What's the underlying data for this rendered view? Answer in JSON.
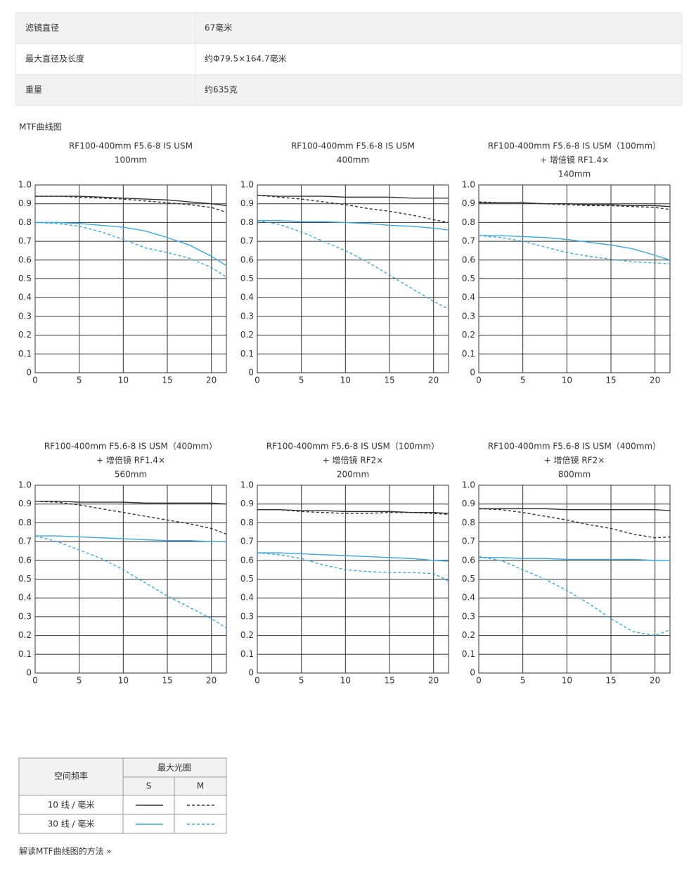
{
  "specs": {
    "rows": [
      [
        "滤镜直径",
        "67毫米"
      ],
      [
        "最大直径及长度",
        "约Φ79.5×164.7毫米"
      ],
      [
        "重量",
        "约635克"
      ]
    ]
  },
  "section_title": "MTF曲线图",
  "chart_data": [
    {
      "type": "line",
      "title": [
        "RF100-400mm F5.6-8 IS USM",
        "100mm"
      ],
      "x": [
        0,
        2.5,
        5,
        7.5,
        10,
        12.5,
        15,
        17.5,
        20,
        21.7
      ],
      "xlim": [
        0,
        21.7
      ],
      "xticks": [
        0,
        5,
        10,
        15,
        20
      ],
      "ylim": [
        0,
        1
      ],
      "yticks": [
        0,
        0.1,
        0.2,
        0.3,
        0.4,
        0.5,
        0.6,
        0.7,
        0.8,
        0.9,
        {
          "value": 1,
          "label": "1.0"
        }
      ],
      "grid": true,
      "series": [
        {
          "color": "#333333",
          "dashed": false,
          "values": [
            0.94,
            0.94,
            0.94,
            0.935,
            0.93,
            0.925,
            0.92,
            0.91,
            0.9,
            0.89
          ]
        },
        {
          "color": "#333333",
          "dashed": true,
          "values": [
            0.94,
            0.94,
            0.935,
            0.93,
            0.925,
            0.915,
            0.905,
            0.895,
            0.88,
            0.855
          ]
        },
        {
          "color": "#3aa8e0",
          "dashed": false,
          "values": [
            0.8,
            0.8,
            0.795,
            0.785,
            0.775,
            0.755,
            0.72,
            0.68,
            0.62,
            0.57
          ]
        },
        {
          "color": "#3aa8e0",
          "dashed": true,
          "values": [
            0.8,
            0.795,
            0.78,
            0.75,
            0.71,
            0.665,
            0.64,
            0.61,
            0.56,
            0.51
          ]
        }
      ]
    },
    {
      "type": "line",
      "title": [
        "RF100-400mm F5.6-8 IS USM",
        "400mm"
      ],
      "x": [
        0,
        2.5,
        5,
        7.5,
        10,
        12.5,
        15,
        17.5,
        20,
        21.7
      ],
      "xlim": [
        0,
        21.7
      ],
      "xticks": [
        0,
        5,
        10,
        15,
        20
      ],
      "ylim": [
        0,
        1
      ],
      "yticks": [
        0,
        0.1,
        0.2,
        0.3,
        0.4,
        0.5,
        0.6,
        0.7,
        0.8,
        0.9,
        {
          "value": 1,
          "label": "1.0"
        }
      ],
      "grid": true,
      "series": [
        {
          "color": "#333333",
          "dashed": false,
          "values": [
            0.945,
            0.94,
            0.94,
            0.94,
            0.935,
            0.935,
            0.935,
            0.93,
            0.93,
            0.93
          ]
        },
        {
          "color": "#333333",
          "dashed": true,
          "values": [
            0.945,
            0.935,
            0.925,
            0.91,
            0.895,
            0.875,
            0.86,
            0.84,
            0.815,
            0.8
          ]
        },
        {
          "color": "#3aa8e0",
          "dashed": false,
          "values": [
            0.81,
            0.81,
            0.805,
            0.805,
            0.8,
            0.795,
            0.785,
            0.78,
            0.77,
            0.76
          ]
        },
        {
          "color": "#3aa8e0",
          "dashed": true,
          "values": [
            0.81,
            0.79,
            0.75,
            0.7,
            0.65,
            0.59,
            0.52,
            0.45,
            0.38,
            0.34
          ]
        }
      ]
    },
    {
      "type": "line",
      "title": [
        "RF100-400mm F5.6-8 IS USM（100mm）",
        "+ 增倍镜 RF1.4×",
        "140mm"
      ],
      "x": [
        0,
        2.5,
        5,
        7.5,
        10,
        12.5,
        15,
        17.5,
        20,
        21.7
      ],
      "xlim": [
        0,
        21.7
      ],
      "xticks": [
        0,
        5,
        10,
        15,
        20
      ],
      "ylim": [
        0,
        1
      ],
      "yticks": [
        0,
        0.1,
        0.2,
        0.3,
        0.4,
        0.5,
        0.6,
        0.7,
        0.8,
        0.9,
        {
          "value": 1,
          "label": "1.0"
        }
      ],
      "grid": true,
      "series": [
        {
          "color": "#333333",
          "dashed": false,
          "values": [
            0.905,
            0.905,
            0.905,
            0.9,
            0.9,
            0.895,
            0.895,
            0.89,
            0.89,
            0.885
          ]
        },
        {
          "color": "#333333",
          "dashed": true,
          "values": [
            0.91,
            0.905,
            0.905,
            0.9,
            0.895,
            0.89,
            0.89,
            0.885,
            0.88,
            0.87
          ]
        },
        {
          "color": "#3aa8e0",
          "dashed": false,
          "values": [
            0.73,
            0.73,
            0.725,
            0.72,
            0.71,
            0.695,
            0.68,
            0.66,
            0.625,
            0.6
          ]
        },
        {
          "color": "#3aa8e0",
          "dashed": true,
          "values": [
            0.73,
            0.72,
            0.7,
            0.67,
            0.64,
            0.62,
            0.605,
            0.59,
            0.585,
            0.58
          ]
        }
      ]
    },
    {
      "type": "line",
      "title": [
        "RF100-400mm F5.6-8 IS USM（400mm）",
        "+ 增倍镜 RF1.4×",
        "560mm"
      ],
      "x": [
        0,
        2.5,
        5,
        7.5,
        10,
        12.5,
        15,
        17.5,
        20,
        21.7
      ],
      "xlim": [
        0,
        21.7
      ],
      "xticks": [
        0,
        5,
        10,
        15,
        20
      ],
      "ylim": [
        0,
        1
      ],
      "yticks": [
        0,
        0.1,
        0.2,
        0.3,
        0.4,
        0.5,
        0.6,
        0.7,
        0.8,
        0.9,
        {
          "value": 1,
          "label": "1.0"
        }
      ],
      "grid": true,
      "series": [
        {
          "color": "#333333",
          "dashed": false,
          "values": [
            0.915,
            0.915,
            0.91,
            0.91,
            0.91,
            0.905,
            0.905,
            0.905,
            0.905,
            0.9
          ]
        },
        {
          "color": "#333333",
          "dashed": true,
          "values": [
            0.915,
            0.91,
            0.895,
            0.875,
            0.855,
            0.835,
            0.815,
            0.795,
            0.77,
            0.74
          ]
        },
        {
          "color": "#3aa8e0",
          "dashed": false,
          "values": [
            0.73,
            0.73,
            0.725,
            0.72,
            0.715,
            0.71,
            0.705,
            0.705,
            0.7,
            0.7
          ]
        },
        {
          "color": "#3aa8e0",
          "dashed": true,
          "values": [
            0.73,
            0.7,
            0.655,
            0.61,
            0.55,
            0.48,
            0.41,
            0.35,
            0.29,
            0.24
          ]
        }
      ]
    },
    {
      "type": "line",
      "title": [
        "RF100-400mm F5.6-8 IS USM（100mm）",
        "+ 增倍镜 RF2×",
        "200mm"
      ],
      "x": [
        0,
        2.5,
        5,
        7.5,
        10,
        12.5,
        15,
        17.5,
        20,
        21.7
      ],
      "xlim": [
        0,
        21.7
      ],
      "xticks": [
        0,
        5,
        10,
        15,
        20
      ],
      "ylim": [
        0,
        1
      ],
      "yticks": [
        0,
        0.1,
        0.2,
        0.3,
        0.4,
        0.5,
        0.6,
        0.7,
        0.8,
        0.9,
        {
          "value": 1,
          "label": "1.0"
        }
      ],
      "grid": true,
      "series": [
        {
          "color": "#333333",
          "dashed": false,
          "values": [
            0.87,
            0.87,
            0.865,
            0.865,
            0.86,
            0.86,
            0.86,
            0.855,
            0.855,
            0.85
          ]
        },
        {
          "color": "#333333",
          "dashed": true,
          "values": [
            0.87,
            0.87,
            0.86,
            0.855,
            0.85,
            0.85,
            0.855,
            0.855,
            0.85,
            0.845
          ]
        },
        {
          "color": "#3aa8e0",
          "dashed": false,
          "values": [
            0.64,
            0.64,
            0.635,
            0.63,
            0.625,
            0.62,
            0.615,
            0.61,
            0.6,
            0.595
          ]
        },
        {
          "color": "#3aa8e0",
          "dashed": true,
          "values": [
            0.64,
            0.63,
            0.61,
            0.575,
            0.55,
            0.54,
            0.535,
            0.535,
            0.53,
            0.49
          ]
        }
      ]
    },
    {
      "type": "line",
      "title": [
        "RF100-400mm F5.6-8 IS USM（400mm）",
        "+ 增倍镜 RF2×",
        "800mm"
      ],
      "x": [
        0,
        2.5,
        5,
        7.5,
        10,
        12.5,
        15,
        17.5,
        20,
        21.7
      ],
      "xlim": [
        0,
        21.7
      ],
      "xticks": [
        0,
        5,
        10,
        15,
        20
      ],
      "ylim": [
        0,
        1
      ],
      "yticks": [
        0,
        0.1,
        0.2,
        0.3,
        0.4,
        0.5,
        0.6,
        0.7,
        0.8,
        0.9,
        {
          "value": 1,
          "label": "1.0"
        }
      ],
      "grid": true,
      "series": [
        {
          "color": "#333333",
          "dashed": false,
          "values": [
            0.875,
            0.875,
            0.875,
            0.875,
            0.87,
            0.87,
            0.87,
            0.87,
            0.87,
            0.865
          ]
        },
        {
          "color": "#333333",
          "dashed": true,
          "values": [
            0.875,
            0.87,
            0.855,
            0.835,
            0.815,
            0.79,
            0.77,
            0.74,
            0.72,
            0.725
          ]
        },
        {
          "color": "#3aa8e0",
          "dashed": false,
          "values": [
            0.615,
            0.615,
            0.61,
            0.61,
            0.605,
            0.605,
            0.605,
            0.605,
            0.6,
            0.6
          ]
        },
        {
          "color": "#3aa8e0",
          "dashed": true,
          "values": [
            0.62,
            0.6,
            0.55,
            0.5,
            0.44,
            0.37,
            0.29,
            0.22,
            0.2,
            0.23
          ]
        }
      ]
    }
  ],
  "legend": {
    "header": "空间频率",
    "aperture": "最大光圈",
    "columns": [
      "S",
      "M"
    ],
    "rows": [
      "10 线 / 毫米",
      "30 线 / 毫米"
    ]
  },
  "link": "解读MTF曲线图的方法 »"
}
